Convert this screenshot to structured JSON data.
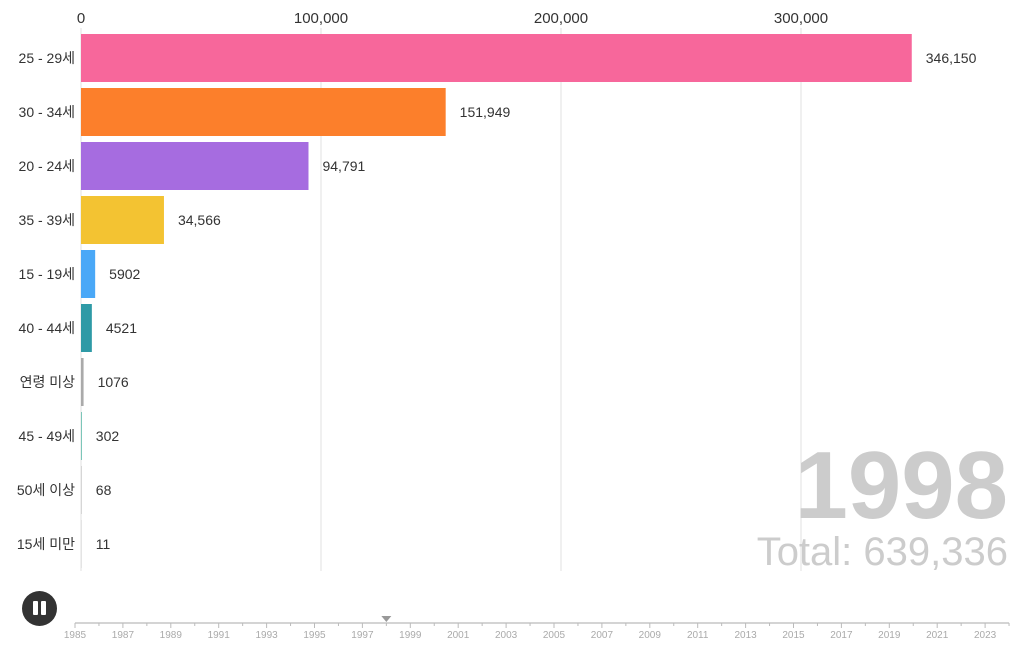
{
  "chart_data": {
    "type": "bar",
    "orientation": "horizontal",
    "categories": [
      "25 - 29세",
      "30 - 34세",
      "20 - 24세",
      "35 - 39세",
      "15 - 19세",
      "40 - 44세",
      "연령 미상",
      "45 - 49세",
      "50세 이상",
      "15세 미만"
    ],
    "values": [
      346150,
      151949,
      94791,
      34566,
      5902,
      4521,
      1076,
      302,
      68,
      11
    ],
    "value_labels": [
      "346,150",
      "151,949",
      "94,791",
      "34,566",
      "5902",
      "4521",
      "1076",
      "302",
      "68",
      "11"
    ],
    "colors": [
      "#f7679b",
      "#fc7f2b",
      "#a66ce0",
      "#f3c332",
      "#4aa8f7",
      "#2e9aa6",
      "#aaaaaa",
      "#5bb8a8",
      "#cccccc",
      "#dddddd"
    ],
    "xlim": [
      0,
      350000
    ],
    "xticks": [
      0,
      100000,
      200000,
      300000
    ],
    "xtick_labels": [
      "0",
      "100,000",
      "200,000",
      "300,000"
    ],
    "grid": true
  },
  "year": "1998",
  "total": "Total: 639,336",
  "timeline": {
    "start": 1985,
    "end": 2024,
    "current": 1998,
    "labels": [
      "1985",
      "1987",
      "1989",
      "1991",
      "1993",
      "1995",
      "1997",
      "1999",
      "2001",
      "2003",
      "2005",
      "2007",
      "2009",
      "2011",
      "2013",
      "2015",
      "2017",
      "2019",
      "2021",
      "2023"
    ]
  }
}
